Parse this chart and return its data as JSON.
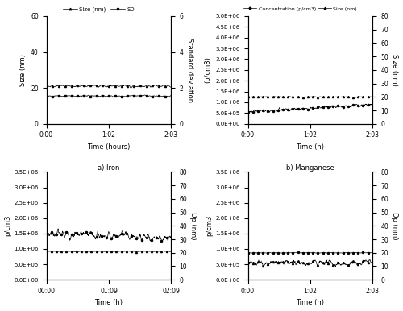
{
  "top_left": {
    "xlabel": "Time (hours)",
    "ylabel_left": "Size (nm)",
    "ylabel_right": "Standard deviation",
    "ylim_left": [
      0,
      60
    ],
    "ylim_right": [
      0,
      6
    ],
    "yticks_left": [
      0,
      20,
      40,
      60
    ],
    "yticks_right": [
      0,
      2,
      4,
      6
    ],
    "xtick_labels": [
      "0:00",
      "1:02",
      "2:03"
    ],
    "size_mean": 21.0,
    "size_noise": 0.8,
    "sd_mean": 1.55,
    "sd_noise": 0.05,
    "n_points": 500,
    "legend": [
      "Size (nm)",
      "SD"
    ]
  },
  "top_right": {
    "xlabel": "Time (h)",
    "ylabel_left": "(p/cm3)",
    "ylabel_right": "Size (nm)",
    "ylim_left": [
      0,
      5000000.0
    ],
    "ylim_right": [
      0,
      80
    ],
    "yticks_right": [
      0,
      10,
      20,
      30,
      40,
      50,
      60,
      70,
      80
    ],
    "xtick_labels": [
      "0:00",
      "1:02",
      "2:03"
    ],
    "conc_mean": 550000.0,
    "conc_noise": 100000.0,
    "conc_trend": 350000.0,
    "size_mean": 20.0,
    "size_noise": 0.3,
    "n_points": 500,
    "legend": [
      "Concentration (p/cm3)",
      "Size (nm)"
    ]
  },
  "bottom_left": {
    "title": "a) Iron",
    "xlabel": "Time (h)",
    "ylabel_left": "p/cm3",
    "ylabel_right": "Dp (nm)",
    "ylim_left": [
      0,
      3500000.0
    ],
    "ylim_right": [
      0,
      80
    ],
    "yticks_right": [
      0,
      10,
      20,
      30,
      40,
      50,
      60,
      70,
      80
    ],
    "xtick_labels": [
      "00:00",
      "01:09",
      "02:09"
    ],
    "conc_mean": 1500000.0,
    "conc_noise": 180000.0,
    "conc_trend": -150000.0,
    "size_mean": 21.0,
    "size_noise": 0.25,
    "n_points": 500
  },
  "bottom_right": {
    "title": "b) Manganese",
    "xlabel": "Time (h)",
    "ylabel_left": "p/cm3",
    "ylabel_right": "Dp (nm)",
    "ylim_left": [
      0,
      3500000.0
    ],
    "ylim_right": [
      0,
      80
    ],
    "yticks_right": [
      0,
      10,
      20,
      30,
      40,
      50,
      60,
      70,
      80
    ],
    "xtick_labels": [
      "0:00",
      "1:02",
      "2:03"
    ],
    "conc_mean": 550000.0,
    "conc_noise": 130000.0,
    "conc_trend": 0.0,
    "size_mean": 20.0,
    "size_noise": 0.3,
    "n_points": 500
  }
}
